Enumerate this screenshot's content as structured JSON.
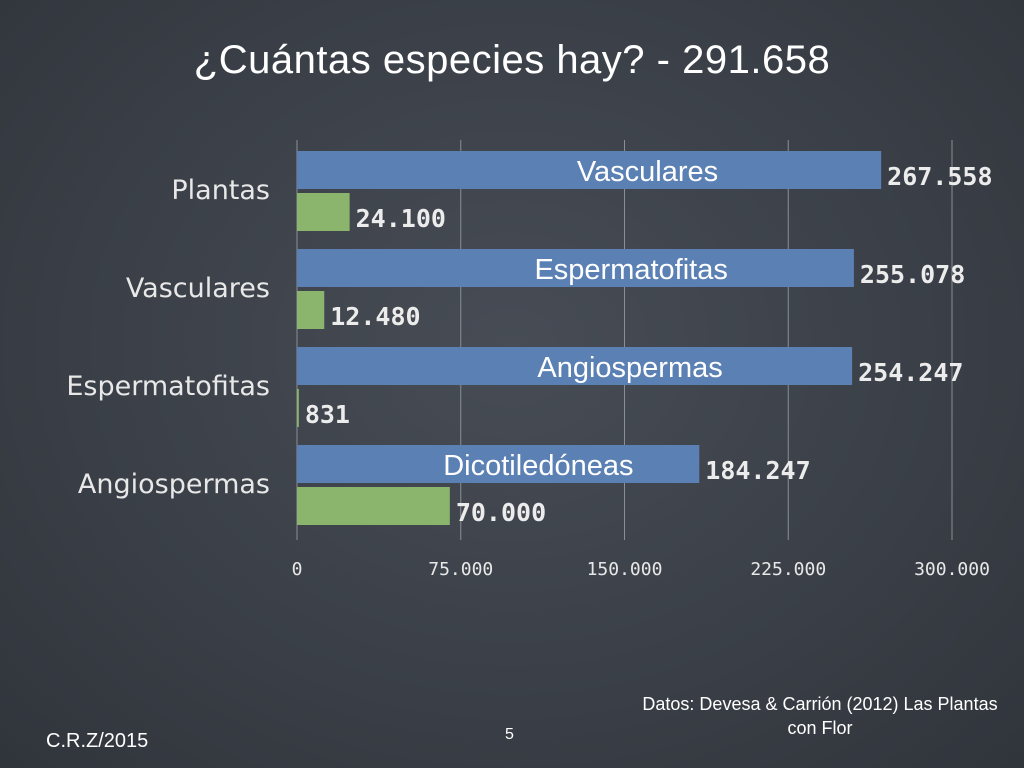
{
  "title": "¿Cuántas especies hay? - 291.658",
  "footer": {
    "author": "C.R.Z/2015",
    "page": "5",
    "source": "Datos: Devesa & Carrión (2012) Las Plantas con Flor"
  },
  "chart_data": {
    "type": "bar",
    "orientation": "horizontal",
    "categories": [
      "Plantas",
      "Vasculares",
      "Espermatofitas",
      "Angiospermas"
    ],
    "series": [
      {
        "color": "#5b80b4",
        "values": [
          267558,
          255078,
          254247,
          184247
        ],
        "value_labels": [
          "267.558",
          "255.078",
          "254.247",
          "184.247"
        ],
        "bar_labels": [
          "Vasculares",
          "Espermatofitas",
          "Angiospermas",
          "Dicotiledóneas"
        ]
      },
      {
        "color": "#8bb46c",
        "values": [
          24100,
          12480,
          831,
          70000
        ],
        "value_labels": [
          "24.100",
          "12.480",
          "831",
          "70.000"
        ]
      }
    ],
    "xlim": [
      0,
      300000
    ],
    "ticks": [
      0,
      75000,
      150000,
      225000,
      300000
    ],
    "tick_labels": [
      "0",
      "75.000",
      "150.000",
      "225.000",
      "300.000"
    ],
    "grid": true
  }
}
